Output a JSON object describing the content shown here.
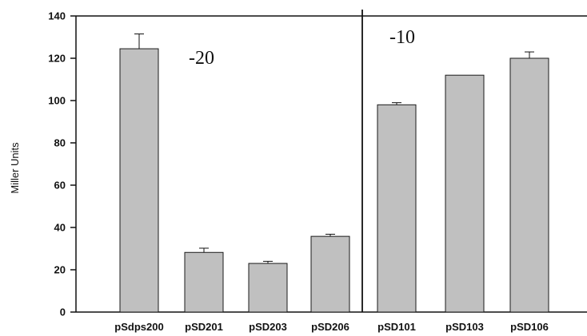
{
  "chart_data": {
    "type": "bar",
    "ylabel": "Miller Units",
    "ylim": [
      0,
      140
    ],
    "yticks": [
      0,
      20,
      40,
      60,
      80,
      100,
      120,
      140
    ],
    "categories": [
      "pSdps200",
      "pSD201",
      "pSD203",
      "pSD206",
      "pSD101",
      "pSD103",
      "pSD106"
    ],
    "values": [
      124.5,
      28.2,
      23.0,
      35.8,
      98.0,
      112.0,
      120.0
    ],
    "errors": [
      7.0,
      2.0,
      1.0,
      1.0,
      1.0,
      0.0,
      3.0
    ],
    "annotations": [
      "-20",
      "-10"
    ],
    "grid": false,
    "colors": {
      "bar_fill": "#c0c0c0",
      "bar_stroke": "#1a1a1a",
      "axis": "#111111"
    }
  }
}
